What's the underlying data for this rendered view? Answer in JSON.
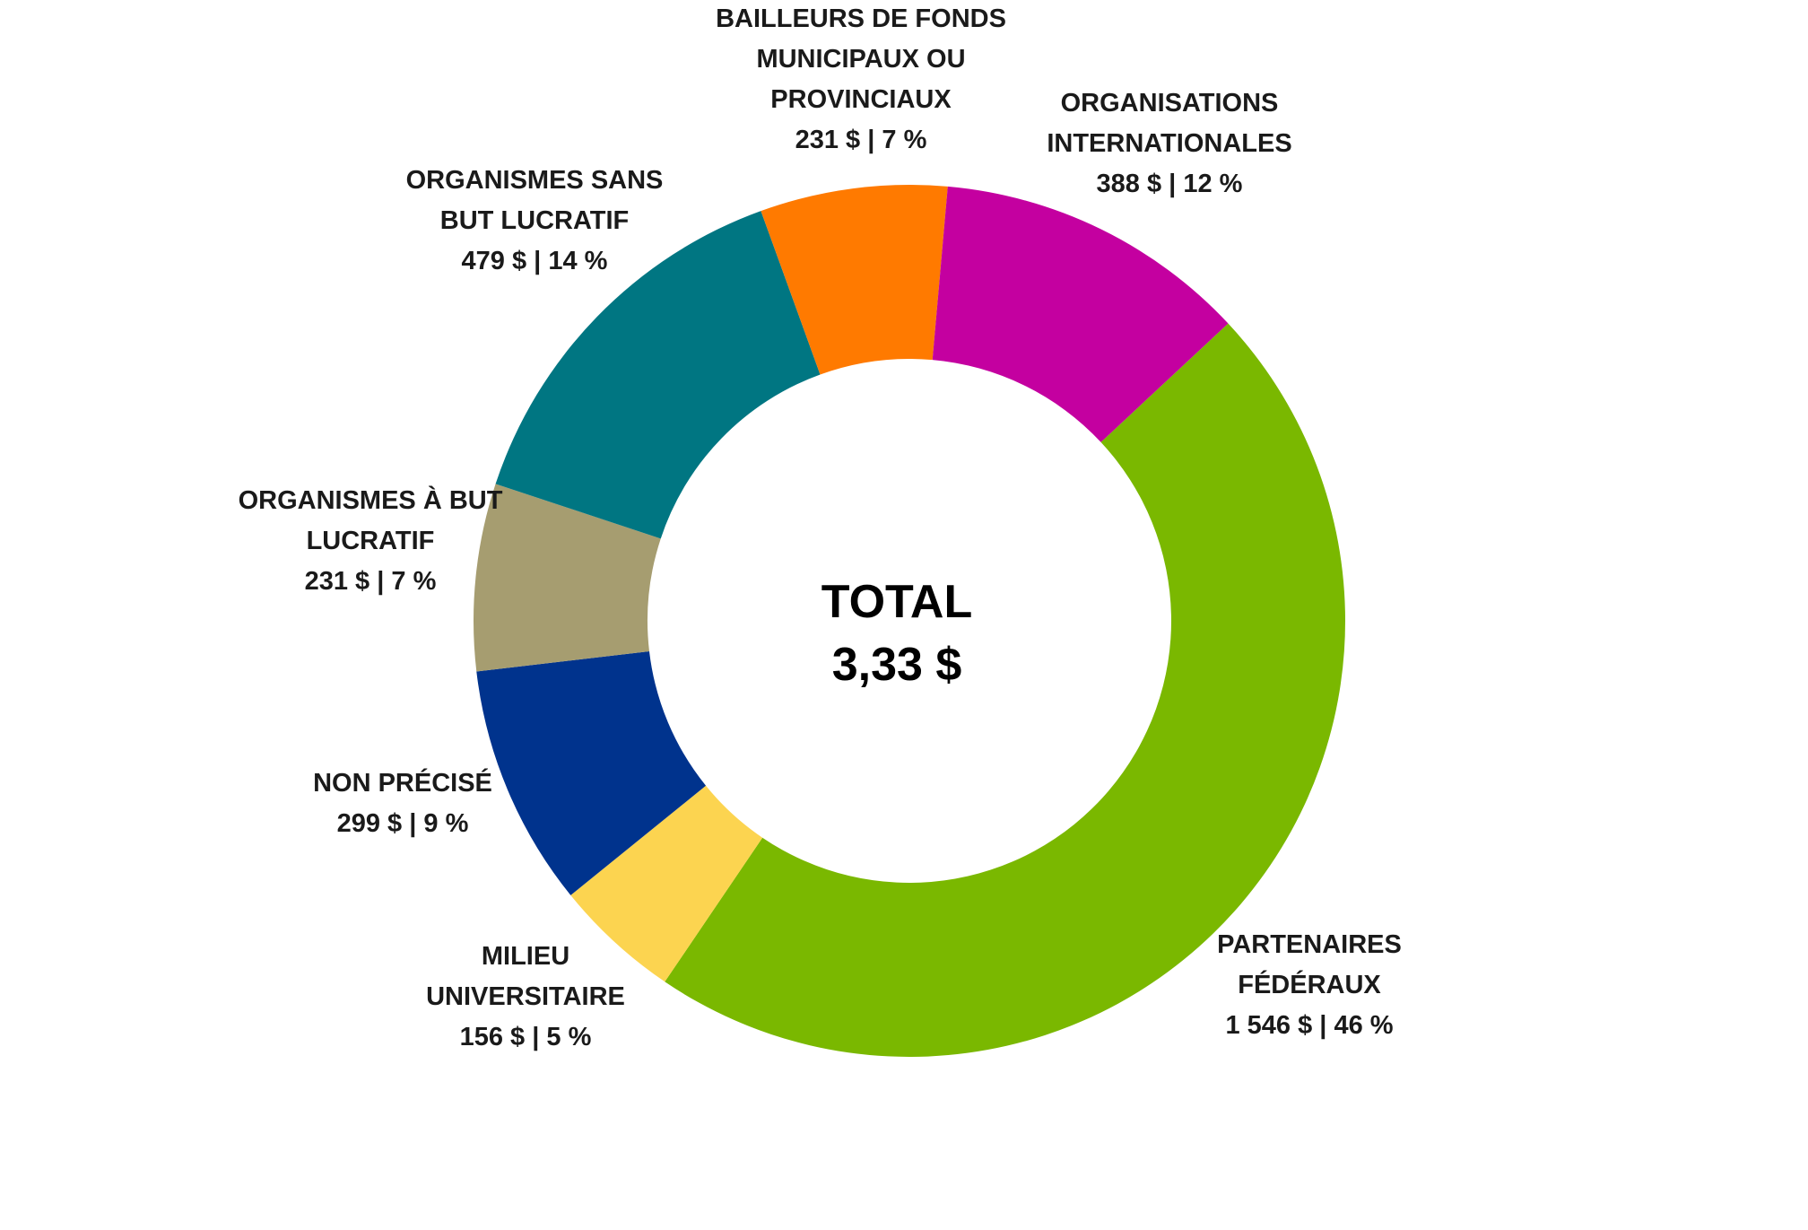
{
  "chart_data": {
    "type": "pie",
    "variant": "donut",
    "center": {
      "title": "TOTAL",
      "value": "3,33 $"
    },
    "slices": [
      {
        "label_lines": [
          "PARTENAIRES",
          "FÉDÉRAUX"
        ],
        "value_text": "1 546 $ | 46 %",
        "value": 1546,
        "percent": 46,
        "color": "#7ab800"
      },
      {
        "label_lines": [
          "MILIEU",
          "UNIVERSITAIRE"
        ],
        "value_text": "156 $ | 5 %",
        "value": 156,
        "percent": 5,
        "color": "#fcd450"
      },
      {
        "label_lines": [
          "NON PRÉCISÉ"
        ],
        "value_text": "299 $ | 9 %",
        "value": 299,
        "percent": 9,
        "color": "#00338d"
      },
      {
        "label_lines": [
          "ORGANISMES À BUT",
          "LUCRATIF"
        ],
        "value_text": "231 $ | 7 %",
        "value": 231,
        "percent": 7,
        "color": "#a69d70"
      },
      {
        "label_lines": [
          "ORGANISMES SANS",
          "BUT LUCRATIF"
        ],
        "value_text": "479 $ | 14 %",
        "value": 479,
        "percent": 14,
        "color": "#007682"
      },
      {
        "label_lines": [
          "BAILLEURS DE FONDS",
          "MUNICIPAUX OU",
          "PROVINCIAUX"
        ],
        "value_text": "231 $ | 7 %",
        "value": 231,
        "percent": 7,
        "color": "#ff7a00"
      },
      {
        "label_lines": [
          "ORGANISATIONS",
          "INTERNATIONALES"
        ],
        "value_text": "388 $ | 12 %",
        "value": 388,
        "percent": 12,
        "color": "#c400a0"
      }
    ]
  }
}
